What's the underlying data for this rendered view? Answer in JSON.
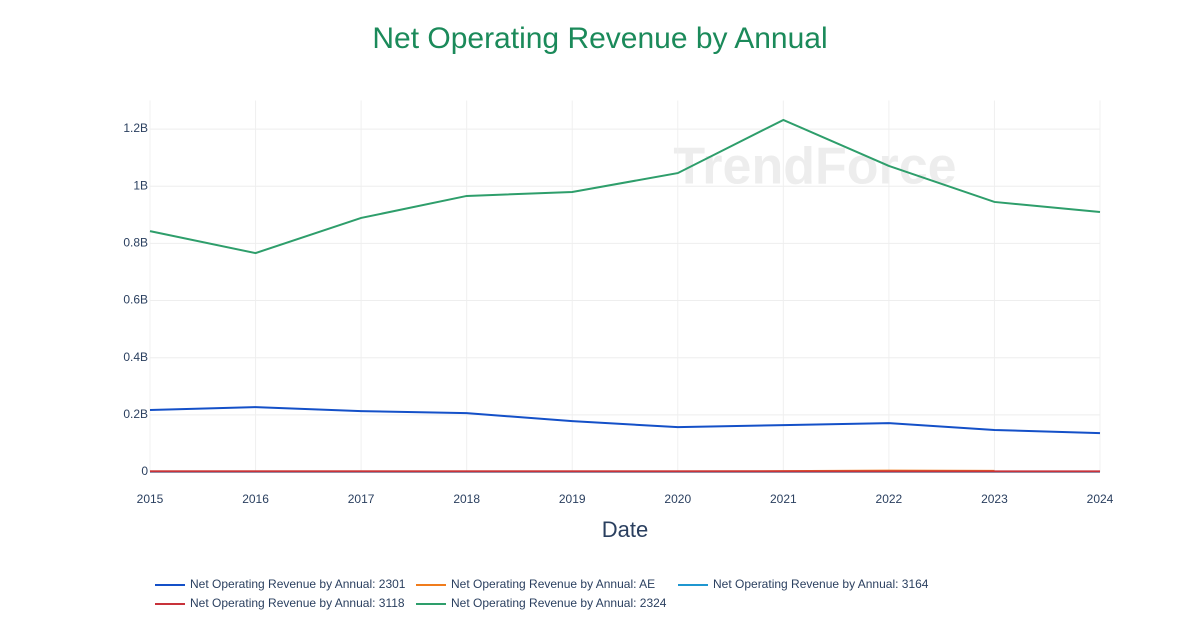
{
  "chart_data": {
    "type": "line",
    "title": "Net Operating Revenue by Annual",
    "x_label": "Date",
    "watermark": "TrendForce",
    "categories": [
      "2015",
      "2016",
      "2017",
      "2018",
      "2019",
      "2020",
      "2021",
      "2022",
      "2023",
      "2024"
    ],
    "ylim": [
      0,
      1300000000
    ],
    "yticks": [
      0,
      {
        "value": 200000000,
        "label": "0.2B"
      },
      {
        "value": 400000000,
        "label": "0.4B"
      },
      {
        "value": 600000000,
        "label": "0.6B"
      },
      {
        "value": 800000000,
        "label": "0.8B"
      },
      {
        "value": 1000000000,
        "label": "1B"
      },
      {
        "value": 1200000000,
        "label": "1.2B"
      }
    ],
    "grid": true,
    "legend_position": "bottom",
    "series": [
      {
        "name": "Net Operating Revenue by Annual: 2301",
        "color": "#1450c8",
        "values": [
          217000000,
          227000000,
          213000000,
          206000000,
          178000000,
          157000000,
          164000000,
          171000000,
          147000000,
          136000000
        ]
      },
      {
        "name": "Net Operating Revenue by Annual: AE",
        "color": "#f07c1c",
        "values": [
          2000000,
          2000000,
          2000000,
          2000000,
          2000000,
          2000000,
          3000000,
          5000000,
          4000000,
          null
        ]
      },
      {
        "name": "Net Operating Revenue by Annual: 3164",
        "color": "#1f97d0",
        "values": [
          1000000,
          1000000,
          1000000,
          1000000,
          1000000,
          1000000,
          1000000,
          1000000,
          1000000,
          1000000
        ]
      },
      {
        "name": "Net Operating Revenue by Annual: 3118",
        "color": "#c8323a",
        "values": [
          2000000,
          2000000,
          2000000,
          2000000,
          2000000,
          2000000,
          2000000,
          2000000,
          2000000,
          2000000
        ]
      },
      {
        "name": "Net Operating Revenue by Annual: 2324",
        "color": "#2e9e6b",
        "values": [
          843000000,
          766000000,
          889000000,
          966000000,
          980000000,
          1046000000,
          1232000000,
          1071000000,
          945000000,
          910000000
        ]
      }
    ]
  }
}
